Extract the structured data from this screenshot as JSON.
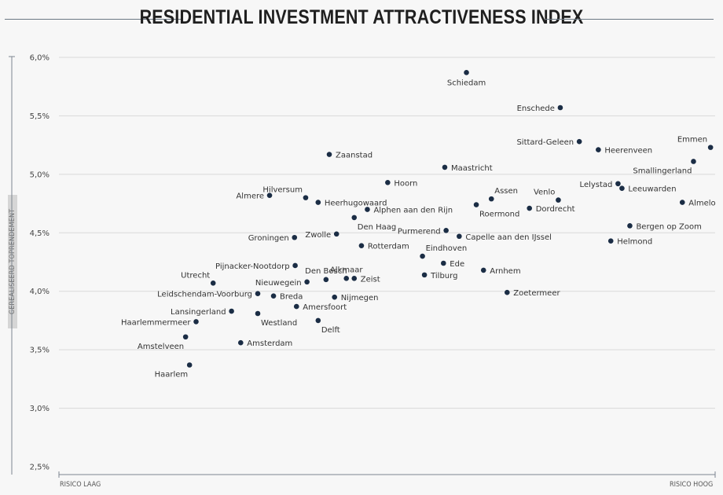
{
  "chart_data": {
    "type": "scatter",
    "title": "RESIDENTIAL INVESTMENT ATTRACTIVENESS INDEX",
    "ylabel": "GEREALISEERD TOPRENDEMENT",
    "xlabel_low": "RISICO LAAG",
    "xlabel_high": "RISICO HOOG",
    "xlim": [
      0,
      100
    ],
    "ylim": [
      2.5,
      6.0
    ],
    "yticks": [
      6.0,
      5.5,
      5.0,
      4.5,
      4.0,
      3.5,
      3.0,
      2.5
    ],
    "ytick_labels": [
      "6,0%",
      "5,5%",
      "5,0%",
      "4,5%",
      "4,0%",
      "3,5%",
      "3,0%",
      "2,5%"
    ],
    "grid": true,
    "points": [
      {
        "label": "Schiedam",
        "x": 62.1,
        "y": 5.87,
        "pos": "below"
      },
      {
        "label": "Enschede",
        "x": 76.4,
        "y": 5.57,
        "pos": "left"
      },
      {
        "label": "Sittard-Geleen",
        "x": 79.3,
        "y": 5.28,
        "pos": "left"
      },
      {
        "label": "Heerenveen",
        "x": 82.2,
        "y": 5.21,
        "pos": "right"
      },
      {
        "label": "Emmen",
        "x": 99.3,
        "y": 5.23,
        "pos": "above-left"
      },
      {
        "label": "Smallingerland",
        "x": 96.7,
        "y": 5.11,
        "pos": "below-left"
      },
      {
        "label": "Zaanstad",
        "x": 41.2,
        "y": 5.17,
        "pos": "right"
      },
      {
        "label": "Maastricht",
        "x": 58.8,
        "y": 5.06,
        "pos": "right"
      },
      {
        "label": "Hoorn",
        "x": 50.1,
        "y": 4.93,
        "pos": "right"
      },
      {
        "label": "Hilversum",
        "x": 37.6,
        "y": 4.8,
        "pos": "above-left"
      },
      {
        "label": "Almere",
        "x": 32.1,
        "y": 4.82,
        "pos": "left"
      },
      {
        "label": "Heerhugowaard",
        "x": 39.5,
        "y": 4.76,
        "pos": "right"
      },
      {
        "label": "Alphen aan den Rijn",
        "x": 47.0,
        "y": 4.7,
        "pos": "right"
      },
      {
        "label": "Assen",
        "x": 65.9,
        "y": 4.79,
        "pos": "above-right"
      },
      {
        "label": "Venlo",
        "x": 76.1,
        "y": 4.78,
        "pos": "above-left"
      },
      {
        "label": "Roermond",
        "x": 63.6,
        "y": 4.74,
        "pos": "below-right"
      },
      {
        "label": "Dordrecht",
        "x": 71.7,
        "y": 4.71,
        "pos": "right"
      },
      {
        "label": "Lelystad",
        "x": 85.2,
        "y": 4.92,
        "pos": "left"
      },
      {
        "label": "Leeuwarden",
        "x": 85.8,
        "y": 4.88,
        "pos": "right"
      },
      {
        "label": "Almelo",
        "x": 95.0,
        "y": 4.76,
        "pos": "right"
      },
      {
        "label": "Den Haag",
        "x": 45.0,
        "y": 4.63,
        "pos": "below-right"
      },
      {
        "label": "Bergen op Zoom",
        "x": 87.0,
        "y": 4.56,
        "pos": "right"
      },
      {
        "label": "Groningen",
        "x": 35.9,
        "y": 4.46,
        "pos": "left"
      },
      {
        "label": "Zwolle",
        "x": 42.3,
        "y": 4.49,
        "pos": "left"
      },
      {
        "label": "Purmerend",
        "x": 59.0,
        "y": 4.52,
        "pos": "left"
      },
      {
        "label": "Capelle aan den IJssel",
        "x": 61.0,
        "y": 4.47,
        "pos": "right"
      },
      {
        "label": "Helmond",
        "x": 84.1,
        "y": 4.43,
        "pos": "right"
      },
      {
        "label": "Rotterdam",
        "x": 46.1,
        "y": 4.39,
        "pos": "right"
      },
      {
        "label": "Eindhoven",
        "x": 55.4,
        "y": 4.3,
        "pos": "above-right"
      },
      {
        "label": "Ede",
        "x": 58.6,
        "y": 4.24,
        "pos": "right"
      },
      {
        "label": "Pijnacker-Nootdorp",
        "x": 36.0,
        "y": 4.22,
        "pos": "left"
      },
      {
        "label": "Arnhem",
        "x": 64.7,
        "y": 4.18,
        "pos": "right"
      },
      {
        "label": "Den Bosch",
        "x": 40.7,
        "y": 4.1,
        "pos": "above"
      },
      {
        "label": "Alkmaar",
        "x": 43.8,
        "y": 4.11,
        "pos": "above"
      },
      {
        "label": "Zeist",
        "x": 45.0,
        "y": 4.11,
        "pos": "right"
      },
      {
        "label": "Tilburg",
        "x": 55.7,
        "y": 4.14,
        "pos": "right"
      },
      {
        "label": "Utrecht",
        "x": 23.5,
        "y": 4.07,
        "pos": "above-left"
      },
      {
        "label": "Nieuwegein",
        "x": 37.8,
        "y": 4.08,
        "pos": "left"
      },
      {
        "label": "Zoetermeer",
        "x": 68.3,
        "y": 3.99,
        "pos": "right"
      },
      {
        "label": "Leidschendam-Voorburg",
        "x": 30.3,
        "y": 3.98,
        "pos": "left"
      },
      {
        "label": "Breda",
        "x": 32.7,
        "y": 3.96,
        "pos": "right"
      },
      {
        "label": "Nijmegen",
        "x": 42.0,
        "y": 3.95,
        "pos": "right"
      },
      {
        "label": "Amersfoort",
        "x": 36.2,
        "y": 3.87,
        "pos": "right"
      },
      {
        "label": "Lansingerland",
        "x": 26.3,
        "y": 3.83,
        "pos": "left"
      },
      {
        "label": "Westland",
        "x": 30.3,
        "y": 3.81,
        "pos": "below-right"
      },
      {
        "label": "Haarlemmermeer",
        "x": 20.9,
        "y": 3.74,
        "pos": "left"
      },
      {
        "label": "Delft",
        "x": 39.5,
        "y": 3.75,
        "pos": "below-right"
      },
      {
        "label": "Amstelveen",
        "x": 19.3,
        "y": 3.61,
        "pos": "below-left"
      },
      {
        "label": "Amsterdam",
        "x": 27.7,
        "y": 3.56,
        "pos": "right"
      },
      {
        "label": "Haarlem",
        "x": 19.9,
        "y": 3.37,
        "pos": "below-left"
      }
    ]
  }
}
